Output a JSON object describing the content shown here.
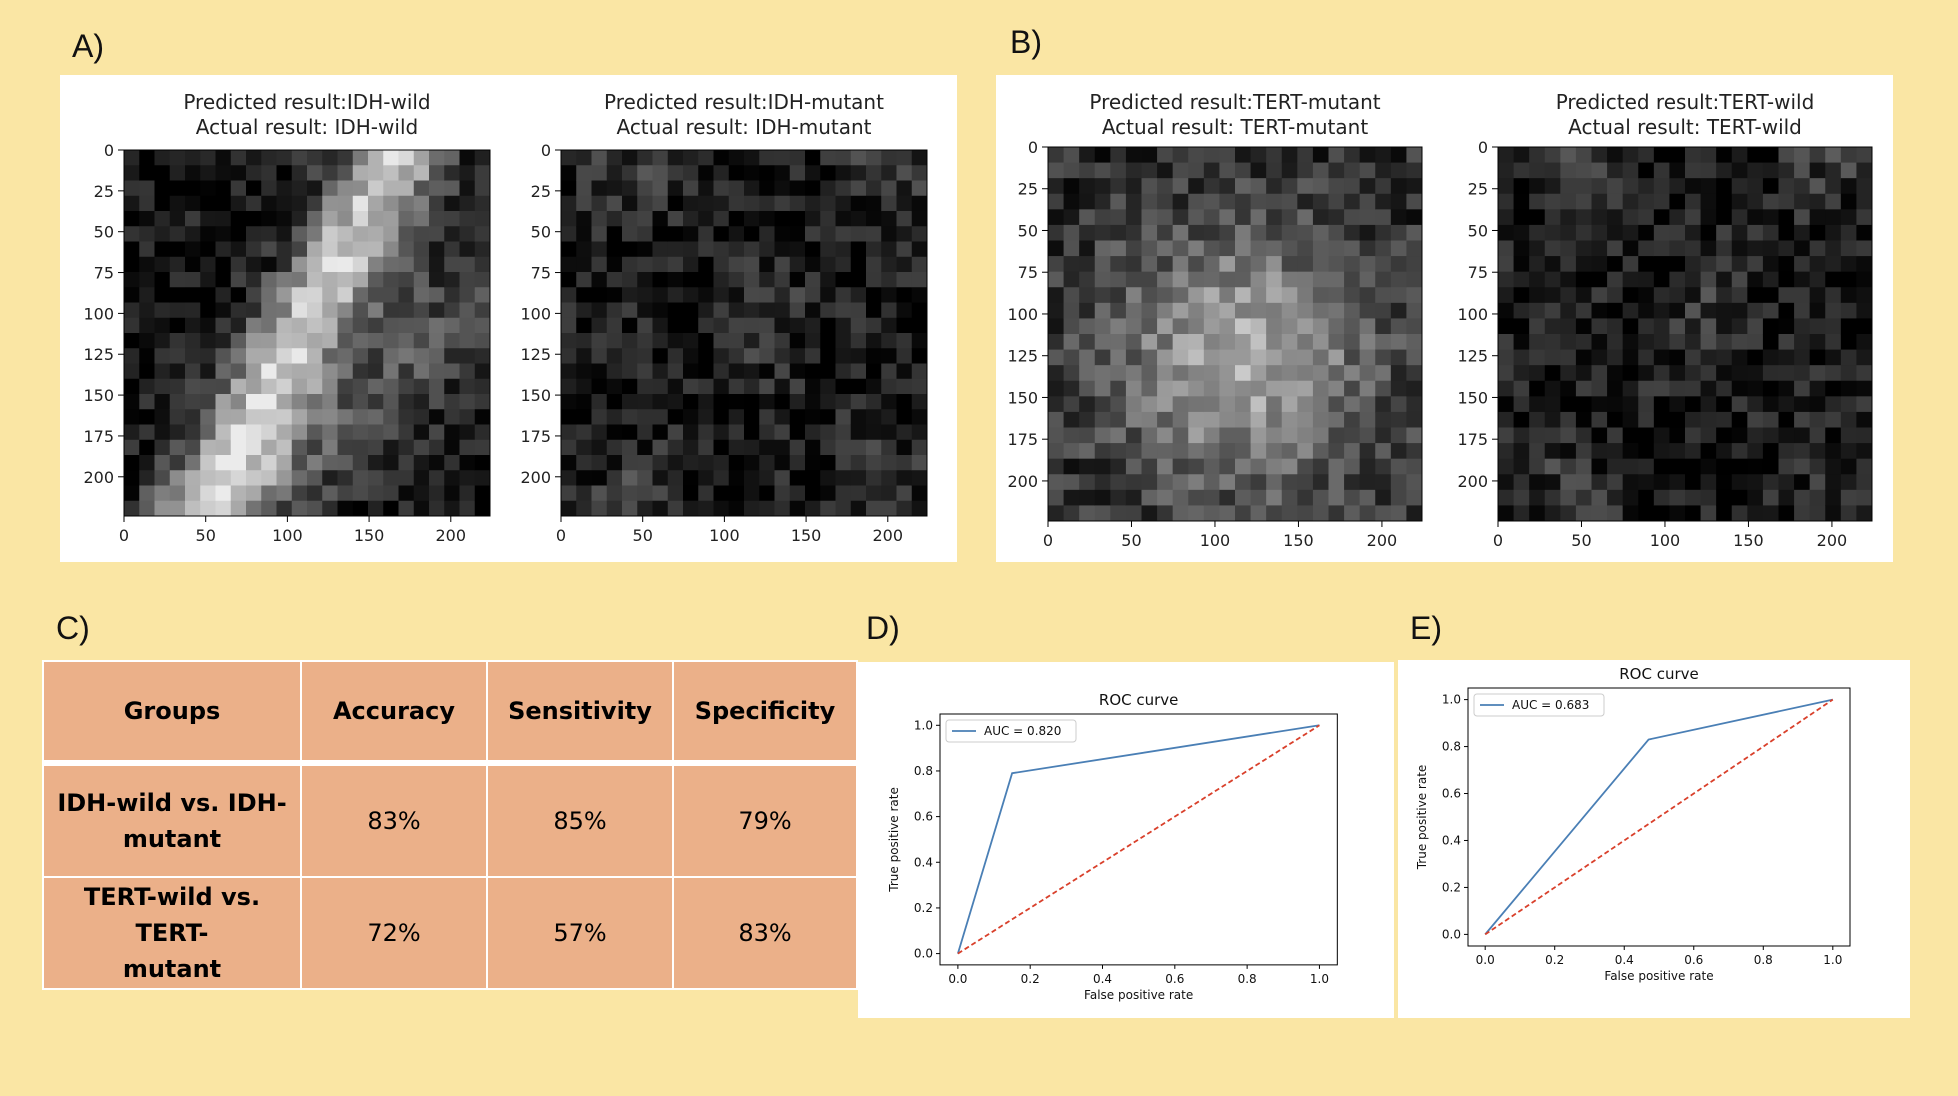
{
  "panel_labels": {
    "a": "A)",
    "b": "B)",
    "c": "C)",
    "d": "D)",
    "e": "E)"
  },
  "images": [
    {
      "title_line1": "Predicted result:IDH-wild",
      "title_line2": "Actual result: IDH-wild",
      "brightness": "bright-diagonal-band"
    },
    {
      "title_line1": "Predicted result:IDH-mutant",
      "title_line2": "Actual result: IDH-mutant",
      "brightness": "dark"
    },
    {
      "title_line1": "Predicted result:TERT-mutant",
      "title_line2": "Actual result: TERT-mutant",
      "brightness": "bright-center"
    },
    {
      "title_line1": "Predicted result:TERT-wild",
      "title_line2": "Actual result: TERT-wild",
      "brightness": "dark"
    }
  ],
  "image_axes": {
    "y_ticks": [
      "0",
      "25",
      "50",
      "75",
      "100",
      "125",
      "150",
      "175",
      "200"
    ],
    "x_ticks": [
      "0",
      "50",
      "100",
      "150",
      "200"
    ],
    "range": [
      0,
      224
    ]
  },
  "table": {
    "headers": [
      "Groups",
      "Accuracy",
      "Sensitivity",
      "Specificity"
    ],
    "rows": [
      {
        "group_line1": "IDH-wild vs. IDH-",
        "group_line2": "mutant",
        "accuracy": "83%",
        "sensitivity": "85%",
        "specificity": "79%"
      },
      {
        "group_line1": "TERT-wild vs. TERT-",
        "group_line2": "mutant",
        "accuracy": "72%",
        "sensitivity": "57%",
        "specificity": "83%"
      }
    ]
  },
  "chart_data": [
    {
      "type": "line",
      "title": "ROC curve",
      "xlabel": "False positive rate",
      "ylabel": "True positive rate",
      "xlim": [
        0,
        1
      ],
      "ylim": [
        0,
        1
      ],
      "ticks": [
        "0.0",
        "0.2",
        "0.4",
        "0.6",
        "0.8",
        "1.0"
      ],
      "series": [
        {
          "name": "AUC = 0.820",
          "x": [
            0.0,
            0.15,
            1.0
          ],
          "y": [
            0.0,
            0.79,
            1.0
          ],
          "color": "#4a7fb5",
          "style": "solid"
        },
        {
          "x": [
            0.0,
            1.0
          ],
          "y": [
            0.0,
            1.0
          ],
          "color": "#d9402b",
          "style": "dashed"
        }
      ],
      "legend": "top-left"
    },
    {
      "type": "line",
      "title": "ROC curve",
      "xlabel": "False positive rate",
      "ylabel": "True positive rate",
      "xlim": [
        0,
        1
      ],
      "ylim": [
        0,
        1
      ],
      "ticks": [
        "0.0",
        "0.2",
        "0.4",
        "0.6",
        "0.8",
        "1.0"
      ],
      "series": [
        {
          "name": "AUC = 0.683",
          "x": [
            0.0,
            0.47,
            1.0
          ],
          "y": [
            0.0,
            0.83,
            1.0
          ],
          "color": "#4a7fb5",
          "style": "solid"
        },
        {
          "x": [
            0.0,
            1.0
          ],
          "y": [
            0.0,
            1.0
          ],
          "color": "#d9402b",
          "style": "dashed"
        }
      ],
      "legend": "top-left"
    }
  ]
}
